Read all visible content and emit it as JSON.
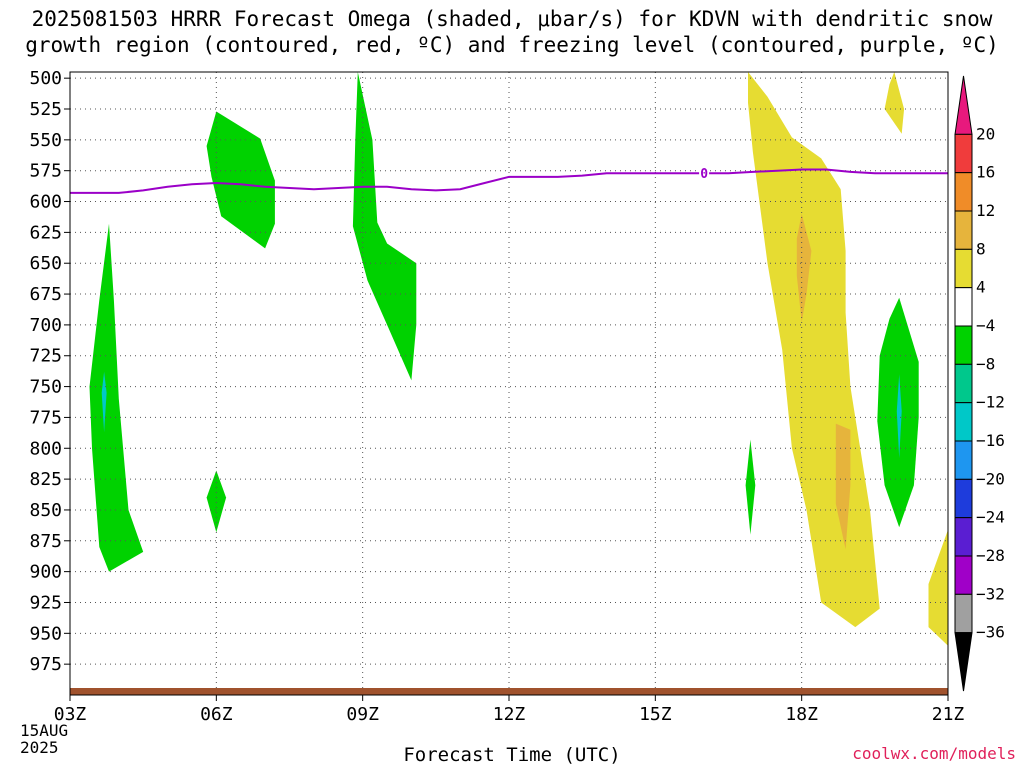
{
  "title": {
    "line1": "2025081503 HRRR Forecast Omega (shaded, μbar/s) for KDVN with dendritic snow",
    "line2": "growth region (contoured, red, ºC) and freezing level (contoured, purple, ºC)"
  },
  "credit": "coolwx.com/models",
  "date_label": [
    "15AUG",
    "2025"
  ],
  "chart_data": {
    "type": "heatmap",
    "title": "2025081503 HRRR Forecast Omega (shaded, μbar/s) for KDVN with dendritic snow growth region (contoured, red, ºC) and freezing level (contoured, purple, ºC)",
    "xlabel": "Forecast Time (UTC)",
    "ylabel": "",
    "x_ticks": [
      "03Z",
      "06Z",
      "09Z",
      "12Z",
      "15Z",
      "18Z",
      "21Z"
    ],
    "x_range_hours": [
      3,
      21
    ],
    "y_ticks": [
      500,
      525,
      550,
      575,
      600,
      625,
      650,
      675,
      700,
      725,
      750,
      775,
      800,
      825,
      850,
      875,
      900,
      925,
      950,
      975
    ],
    "y_range_hPa": [
      495,
      1000
    ],
    "grid": true,
    "colorbar": {
      "labels": [
        "20",
        "16",
        "12",
        "8",
        "4",
        "−4",
        "−8",
        "−12",
        "−16",
        "−20",
        "−24",
        "−28",
        "−32",
        "−36"
      ],
      "bins": [
        {
          "range": ">20",
          "color": "#e8197d"
        },
        {
          "range": "16 to 20",
          "color": "#f03c3c"
        },
        {
          "range": "12 to 16",
          "color": "#f08c28"
        },
        {
          "range": "8 to 12",
          "color": "#e6b43c"
        },
        {
          "range": "4 to 8",
          "color": "#e6dc32"
        },
        {
          "range": "-4 to 4",
          "color": "#ffffff"
        },
        {
          "range": "-8 to -4",
          "color": "#00d200"
        },
        {
          "range": "-12 to -8",
          "color": "#00c88c"
        },
        {
          "range": "-16 to -12",
          "color": "#00c8c8"
        },
        {
          "range": "-20 to -16",
          "color": "#1e96f0"
        },
        {
          "range": "-24 to -20",
          "color": "#1e3cdc"
        },
        {
          "range": "-28 to -24",
          "color": "#5a1ed2"
        },
        {
          "range": "-32 to -28",
          "color": "#a000c8"
        },
        {
          "range": "-36 to -32",
          "color": "#a0a0a0"
        },
        {
          "range": "<-36",
          "color": "#000000"
        }
      ]
    },
    "omega_regions": [
      {
        "name": "rising-03z",
        "color": "#00d200",
        "points": [
          [
            3.8,
            900
          ],
          [
            4.5,
            884
          ],
          [
            4.2,
            850
          ],
          [
            4.0,
            760
          ],
          [
            3.9,
            680
          ],
          [
            3.8,
            618
          ],
          [
            3.6,
            680
          ],
          [
            3.4,
            750
          ],
          [
            3.45,
            800
          ],
          [
            3.6,
            880
          ]
        ]
      },
      {
        "name": "rising-03z-core",
        "color": "#00c8c8",
        "points": [
          [
            3.7,
            738
          ],
          [
            3.75,
            755
          ],
          [
            3.7,
            787
          ],
          [
            3.65,
            755
          ]
        ]
      },
      {
        "name": "rising-06z-mid",
        "color": "#00d200",
        "points": [
          [
            6.0,
            527
          ],
          [
            6.9,
            549
          ],
          [
            7.2,
            583
          ],
          [
            7.2,
            618
          ],
          [
            7.0,
            638
          ],
          [
            6.1,
            612
          ],
          [
            5.9,
            580
          ],
          [
            5.8,
            555
          ]
        ]
      },
      {
        "name": "rising-06z-low",
        "color": "#00d200",
        "points": [
          [
            6.0,
            818
          ],
          [
            6.2,
            840
          ],
          [
            6.0,
            868
          ],
          [
            5.8,
            840
          ]
        ]
      },
      {
        "name": "rising-09z",
        "color": "#00d200",
        "points": [
          [
            8.9,
            495
          ],
          [
            9.2,
            550
          ],
          [
            9.3,
            617
          ],
          [
            9.5,
            634
          ],
          [
            10.1,
            650
          ],
          [
            10.1,
            700
          ],
          [
            10.0,
            745
          ],
          [
            9.5,
            700
          ],
          [
            9.1,
            664
          ],
          [
            8.8,
            620
          ],
          [
            8.85,
            550
          ]
        ]
      },
      {
        "name": "sinking-17z-main",
        "color": "#e6dc32",
        "points": [
          [
            16.9,
            495
          ],
          [
            17.3,
            515
          ],
          [
            17.8,
            548
          ],
          [
            18.4,
            565
          ],
          [
            18.8,
            590
          ],
          [
            18.9,
            640
          ],
          [
            18.9,
            690
          ],
          [
            19.0,
            750
          ],
          [
            19.2,
            800
          ],
          [
            19.4,
            850
          ],
          [
            19.6,
            930
          ],
          [
            19.1,
            945
          ],
          [
            18.4,
            925
          ],
          [
            18.3,
            900
          ],
          [
            18.1,
            850
          ],
          [
            17.8,
            800
          ],
          [
            17.6,
            720
          ],
          [
            17.3,
            650
          ],
          [
            17.0,
            560
          ],
          [
            16.9,
            520
          ]
        ]
      },
      {
        "name": "sinking-17z-core-upper",
        "color": "#e6b43c",
        "points": [
          [
            18.0,
            610
          ],
          [
            18.2,
            640
          ],
          [
            18.1,
            675
          ],
          [
            18.0,
            698
          ],
          [
            17.9,
            660
          ],
          [
            17.9,
            630
          ]
        ]
      },
      {
        "name": "sinking-17z-core-lower",
        "color": "#e6b43c",
        "points": [
          [
            18.7,
            780
          ],
          [
            19.0,
            785
          ],
          [
            19.0,
            830
          ],
          [
            18.9,
            882
          ],
          [
            18.7,
            845
          ],
          [
            18.7,
            810
          ]
        ]
      },
      {
        "name": "sinking-20z-upper",
        "color": "#e6dc32",
        "points": [
          [
            19.9,
            495
          ],
          [
            20.1,
            525
          ],
          [
            20.05,
            545
          ],
          [
            19.7,
            525
          ],
          [
            19.8,
            505
          ]
        ]
      },
      {
        "name": "rising-20z",
        "color": "#00d200",
        "points": [
          [
            20.0,
            678
          ],
          [
            20.4,
            730
          ],
          [
            20.4,
            775
          ],
          [
            20.3,
            830
          ],
          [
            20.0,
            864
          ],
          [
            19.7,
            830
          ],
          [
            19.55,
            778
          ],
          [
            19.6,
            725
          ],
          [
            19.8,
            695
          ]
        ]
      },
      {
        "name": "rising-20z-core",
        "color": "#00c8c8",
        "points": [
          [
            20.0,
            740
          ],
          [
            20.05,
            770
          ],
          [
            20.0,
            808
          ],
          [
            19.95,
            770
          ]
        ]
      },
      {
        "name": "rising-17z-low",
        "color": "#00d200",
        "points": [
          [
            16.95,
            793
          ],
          [
            17.05,
            830
          ],
          [
            16.95,
            870
          ],
          [
            16.85,
            830
          ]
        ]
      },
      {
        "name": "sinking-21z-low",
        "color": "#e6dc32",
        "points": [
          [
            21.0,
            866
          ],
          [
            21.0,
            960
          ],
          [
            20.6,
            945
          ],
          [
            20.6,
            910
          ]
        ]
      }
    ],
    "freezing_level_hPa": {
      "x": [
        3.0,
        3.5,
        4.0,
        4.5,
        5.0,
        5.5,
        6.0,
        6.5,
        7.0,
        7.5,
        8.0,
        8.5,
        9.0,
        9.5,
        10.0,
        10.5,
        11.0,
        11.5,
        12.0,
        12.5,
        13.0,
        13.5,
        14.0,
        14.5,
        15.0,
        15.5,
        16.0,
        16.5,
        17.0,
        17.5,
        18.0,
        18.5,
        19.0,
        19.5,
        20.0,
        20.5,
        21.0
      ],
      "y": [
        593,
        593,
        593,
        591,
        588,
        586,
        585,
        586,
        588,
        589,
        590,
        589,
        588,
        588,
        590,
        591,
        590,
        585,
        580,
        580,
        580,
        579,
        577,
        577,
        577,
        577,
        577,
        577,
        576,
        575,
        574,
        574,
        576,
        577,
        577,
        577,
        577
      ],
      "label": "0"
    },
    "terrain_surface_hPa": 990
  }
}
